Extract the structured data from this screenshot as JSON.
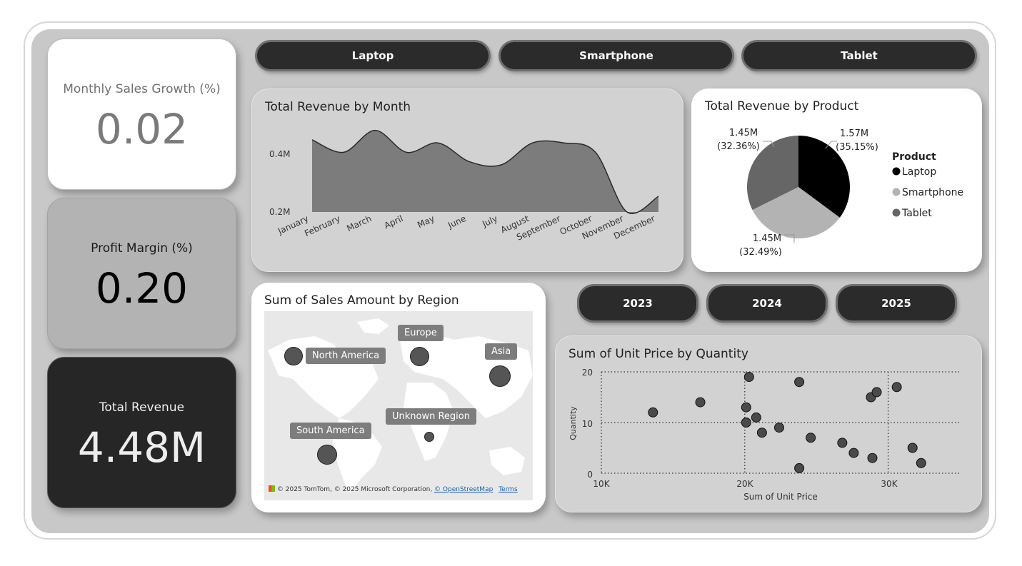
{
  "kpis": {
    "growth": {
      "title": "Monthly Sales Growth (%)",
      "value": "0.02"
    },
    "margin": {
      "title": "Profit Margin (%)",
      "value": "0.20"
    },
    "revenue": {
      "title": "Total Revenue",
      "value": "4.48M"
    }
  },
  "product_slicer": [
    "Laptop",
    "Smartphone",
    "Tablet"
  ],
  "year_slicer": [
    "2023",
    "2024",
    "2025"
  ],
  "revenue_by_month": {
    "title": "Total Revenue by Month",
    "y_ticks": [
      "0.4M",
      "0.2M"
    ]
  },
  "revenue_by_product": {
    "title": "Total Revenue by Product",
    "legend_title": "Product",
    "labels": [
      {
        "value": "1.57M",
        "pct": "(35.15%)"
      },
      {
        "value": "1.45M",
        "pct": "(32.36%)"
      },
      {
        "value": "1.45M",
        "pct": "(32.49%)"
      }
    ]
  },
  "sales_by_region": {
    "title": "Sum of Sales Amount by Region",
    "regions": [
      "North America",
      "Europe",
      "Asia",
      "Unknown Region",
      "South America"
    ],
    "attribution": "© 2025 TomTom, © 2025 Microsoft Corporation,",
    "osm_link": "© OpenStreetMap",
    "terms_link": "Terms"
  },
  "unit_price_scatter": {
    "title": "Sum of Unit Price by Quantity",
    "x_ticks": [
      "10K",
      "20K",
      "30K"
    ],
    "y_ticks": [
      "20",
      "10",
      "0"
    ]
  },
  "chart_data": [
    {
      "type": "area",
      "title": "Total Revenue by Month",
      "categories": [
        "January",
        "February",
        "March",
        "April",
        "May",
        "June",
        "July",
        "August",
        "September",
        "October",
        "November",
        "December"
      ],
      "values": [
        0.43,
        0.39,
        0.46,
        0.39,
        0.42,
        0.36,
        0.35,
        0.42,
        0.42,
        0.39,
        0.2,
        0.25
      ],
      "ylim": [
        0.2,
        0.5
      ],
      "y_ticks": [
        0.2,
        0.4
      ]
    },
    {
      "type": "pie",
      "title": "Total Revenue by Product",
      "legend_title": "Product",
      "legend_position": "right",
      "slices": [
        {
          "name": "Laptop",
          "value": 1.57,
          "percent": 35.15,
          "color": "#000000"
        },
        {
          "name": "Smartphone",
          "value": 1.45,
          "percent": 32.49,
          "color": "#b3b3b3"
        },
        {
          "name": "Tablet",
          "value": 1.45,
          "percent": 32.36,
          "color": "#666666"
        }
      ]
    },
    {
      "type": "scatter",
      "title": "Sum of Unit Price by Quantity",
      "xlabel": "Sum of Unit Price",
      "ylabel": "Quantity",
      "xlim": [
        10000,
        35000
      ],
      "ylim": [
        0,
        20
      ],
      "x_ticks": [
        10000,
        20000,
        30000
      ],
      "y_ticks": [
        0,
        10,
        20
      ],
      "points": [
        {
          "x": 13600,
          "y": 12
        },
        {
          "x": 16900,
          "y": 14
        },
        {
          "x": 20100,
          "y": 13
        },
        {
          "x": 20300,
          "y": 19
        },
        {
          "x": 20100,
          "y": 10
        },
        {
          "x": 20800,
          "y": 11
        },
        {
          "x": 21200,
          "y": 8
        },
        {
          "x": 22400,
          "y": 9
        },
        {
          "x": 23800,
          "y": 18
        },
        {
          "x": 23800,
          "y": 1
        },
        {
          "x": 24600,
          "y": 7
        },
        {
          "x": 26800,
          "y": 6
        },
        {
          "x": 27600,
          "y": 4
        },
        {
          "x": 28800,
          "y": 15
        },
        {
          "x": 29200,
          "y": 16
        },
        {
          "x": 28900,
          "y": 3
        },
        {
          "x": 30600,
          "y": 17
        },
        {
          "x": 31700,
          "y": 5
        },
        {
          "x": 32300,
          "y": 2
        }
      ]
    },
    {
      "type": "bubble-map",
      "title": "Sum of Sales Amount by Region",
      "regions": [
        {
          "name": "North America",
          "size": 0.7
        },
        {
          "name": "Europe",
          "size": 0.7
        },
        {
          "name": "Asia",
          "size": 0.85
        },
        {
          "name": "Unknown Region",
          "size": 0.3
        },
        {
          "name": "South America",
          "size": 0.75
        }
      ]
    }
  ]
}
